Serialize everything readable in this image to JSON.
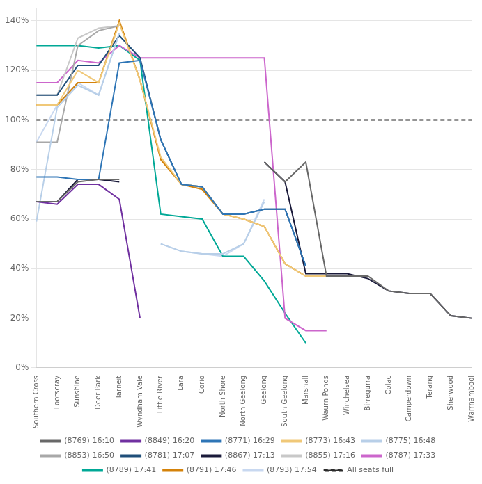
{
  "chart_data": {
    "type": "line",
    "categories": [
      "Southern Cross",
      "Footscray",
      "Sunshine",
      "Deer Park",
      "Tarneit",
      "Wyndham Vale",
      "Little River",
      "Lara",
      "Corio",
      "North Shore",
      "North Geelong",
      "Geelong",
      "South Geelong",
      "Marshall",
      "Waurn Ponds",
      "Winchelsea",
      "Birregurra",
      "Colac",
      "Camperdown",
      "Terang",
      "Sherwood",
      "Warrnambool"
    ],
    "series": [
      {
        "name": "(8769) 16:10",
        "color": "#686868",
        "values": [
          0.67,
          0.67,
          0.75,
          0.76,
          0.76,
          null,
          null,
          null,
          null,
          null,
          null,
          0.83,
          0.75,
          0.83,
          0.37,
          0.37,
          0.37,
          0.31,
          0.3,
          0.3,
          0.21,
          0.2
        ]
      },
      {
        "name": "(8849) 16:20",
        "color": "#7030a0",
        "values": [
          0.67,
          0.66,
          0.74,
          0.74,
          0.68,
          0.2,
          null,
          null,
          null,
          null,
          null,
          null,
          null,
          null,
          null,
          null,
          null,
          null,
          null,
          null,
          null,
          null
        ]
      },
      {
        "name": "(8771) 16:29",
        "color": "#2e75b6",
        "values": [
          0.77,
          0.77,
          0.76,
          0.76,
          1.23,
          1.24,
          0.92,
          0.74,
          0.73,
          0.62,
          0.62,
          0.64,
          0.64,
          0.41,
          null,
          null,
          null,
          null,
          null,
          null,
          null,
          null
        ]
      },
      {
        "name": "(8773) 16:43",
        "color": "#f0c878",
        "values": [
          1.06,
          1.06,
          1.2,
          1.15,
          1.39,
          1.16,
          0.85,
          0.74,
          0.73,
          0.62,
          0.6,
          0.57,
          0.42,
          0.37,
          0.37,
          null,
          null,
          null,
          null,
          null,
          null,
          null
        ]
      },
      {
        "name": "(8775) 16:48",
        "color": "#b8cfe8",
        "values": [
          0.59,
          1.05,
          1.14,
          1.1,
          1.35,
          null,
          0.5,
          0.47,
          0.46,
          0.46,
          0.5,
          0.67,
          null,
          null,
          null,
          null,
          null,
          null,
          null,
          null,
          null,
          null
        ]
      },
      {
        "name": "(8853) 16:50",
        "color": "#a8a8a8",
        "values": [
          0.91,
          0.91,
          1.3,
          1.36,
          1.38,
          null,
          null,
          null,
          null,
          null,
          null,
          null,
          null,
          null,
          null,
          null,
          null,
          null,
          null,
          null,
          null,
          null
        ]
      },
      {
        "name": "(8781) 17:07",
        "color": "#1f4e79",
        "values": [
          1.1,
          1.1,
          1.22,
          1.22,
          1.34,
          1.25,
          0.92,
          0.74,
          0.73,
          0.62,
          0.62,
          0.64,
          0.64,
          0.41,
          null,
          null,
          null,
          null,
          null,
          null,
          null,
          null
        ]
      },
      {
        "name": "(8867) 17:13",
        "color": "#1a1a3a",
        "values": [
          0.67,
          0.67,
          0.76,
          0.76,
          0.75,
          null,
          null,
          null,
          null,
          null,
          null,
          0.83,
          0.75,
          0.38,
          0.38,
          0.38,
          0.36,
          0.31,
          0.3,
          0.3,
          0.21,
          0.2
        ]
      },
      {
        "name": "(8855) 17:16",
        "color": "#c8c8c8",
        "values": [
          1.1,
          1.1,
          1.33,
          1.37,
          1.38,
          null,
          null,
          null,
          null,
          null,
          null,
          null,
          null,
          null,
          null,
          null,
          null,
          null,
          null,
          null,
          null,
          null
        ]
      },
      {
        "name": "(8787) 17:33",
        "color": "#cc66cc",
        "values": [
          1.15,
          1.15,
          1.24,
          1.23,
          1.3,
          1.25,
          1.25,
          1.25,
          1.25,
          1.25,
          1.25,
          1.25,
          0.2,
          0.15,
          0.15,
          null,
          null,
          null,
          null,
          null,
          null,
          null
        ]
      },
      {
        "name": "(8789) 17:41",
        "color": "#00a896",
        "values": [
          1.3,
          1.3,
          1.3,
          1.29,
          1.3,
          1.24,
          0.62,
          0.61,
          0.6,
          0.45,
          0.45,
          0.35,
          0.22,
          0.1,
          null,
          null,
          null,
          null,
          null,
          null,
          null,
          null
        ]
      },
      {
        "name": "(8791) 17:46",
        "color": "#d4820a",
        "values": [
          1.06,
          1.06,
          1.15,
          1.15,
          1.4,
          1.16,
          0.84,
          0.74,
          0.72,
          0.62,
          0.6,
          0.57,
          0.42,
          0.37,
          0.37,
          null,
          null,
          null,
          null,
          null,
          null,
          null
        ]
      },
      {
        "name": "(8793) 17:54",
        "color": "#c8d8f0",
        "values": [
          0.91,
          1.06,
          1.15,
          1.1,
          1.35,
          null,
          0.5,
          0.47,
          0.46,
          0.45,
          0.5,
          0.68,
          null,
          null,
          null,
          null,
          null,
          null,
          null,
          null,
          null,
          null
        ]
      },
      {
        "name": "All seats full",
        "color": "#2c2c2c",
        "line_style": "dashed",
        "values": [
          1.0,
          1.0,
          1.0,
          1.0,
          1.0,
          1.0,
          1.0,
          1.0,
          1.0,
          1.0,
          1.0,
          1.0,
          1.0,
          1.0,
          1.0,
          1.0,
          1.0,
          1.0,
          1.0,
          1.0,
          1.0,
          1.0
        ]
      }
    ],
    "ylim": [
      0,
      1.45
    ],
    "yticks": [
      {
        "value": 0,
        "label": "0%"
      },
      {
        "value": 0.2,
        "label": "20%"
      },
      {
        "value": 0.4,
        "label": "40%"
      },
      {
        "value": 0.6,
        "label": "60%"
      },
      {
        "value": 0.8,
        "label": "80%"
      },
      {
        "value": 1.0,
        "label": "100%"
      },
      {
        "value": 1.2,
        "label": "120%"
      },
      {
        "value": 1.4,
        "label": "140%"
      }
    ],
    "grid": true,
    "legend": "bottom"
  }
}
